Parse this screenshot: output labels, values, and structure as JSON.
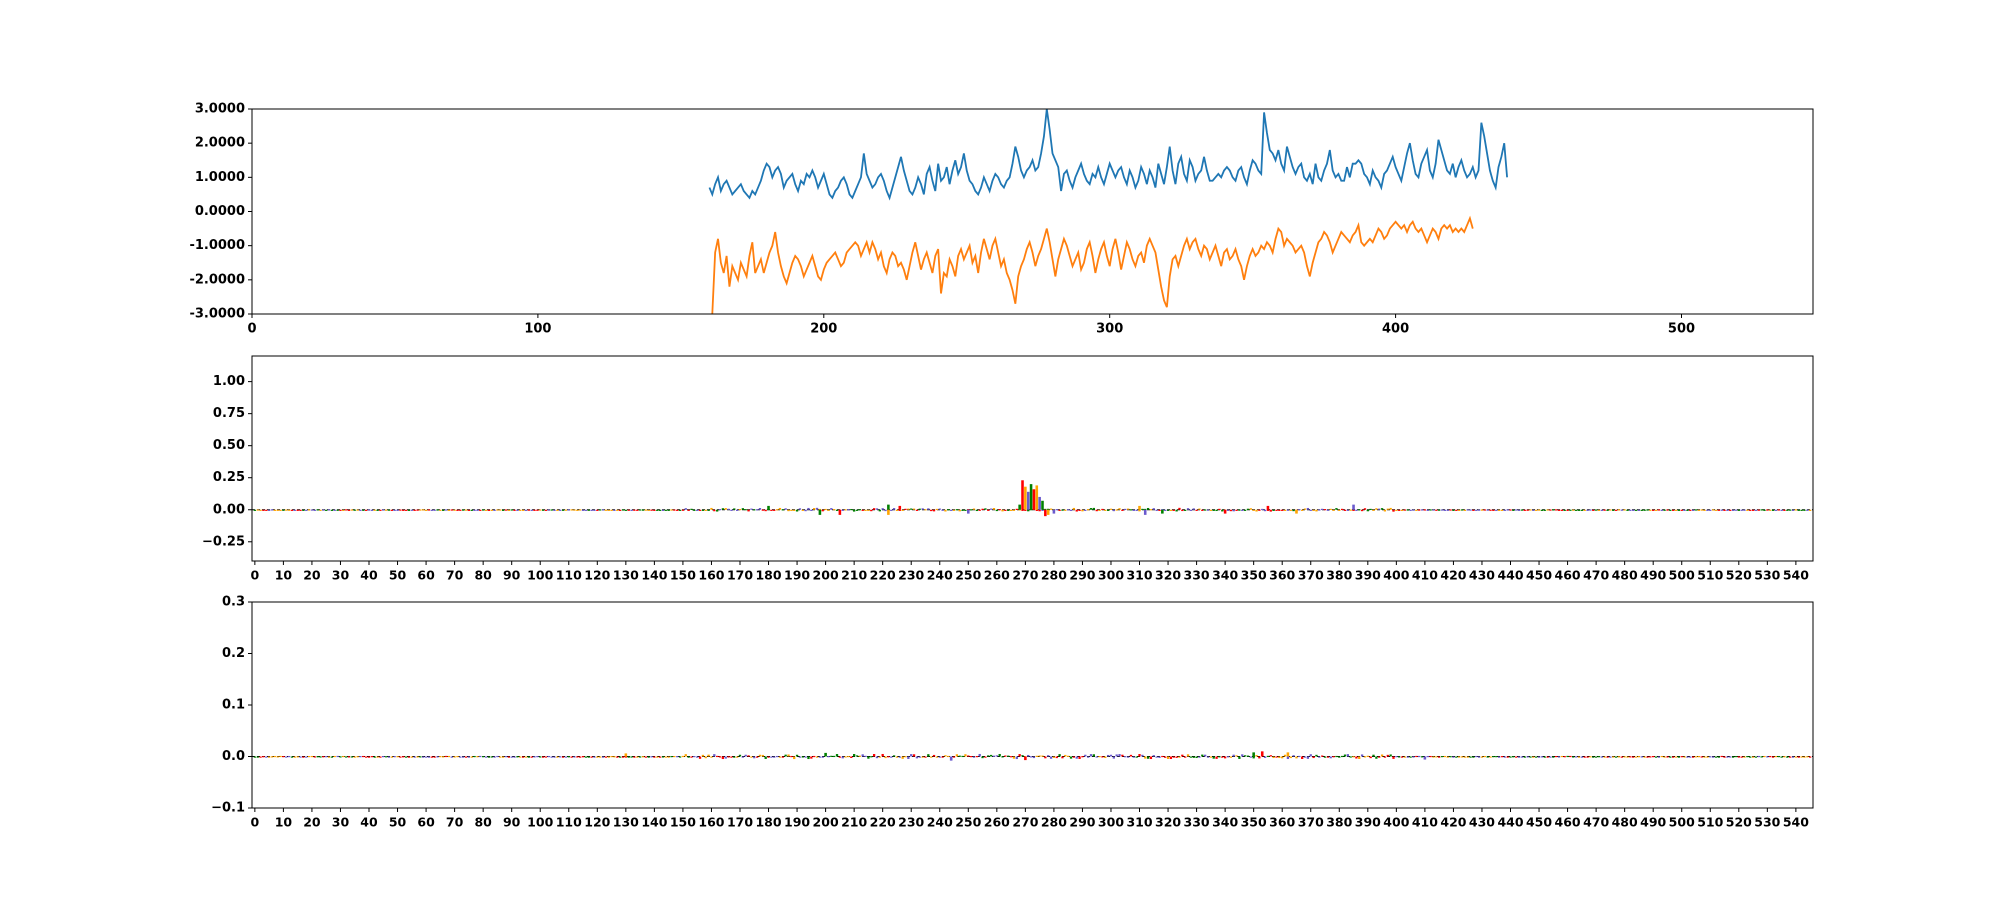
{
  "colors": {
    "blue": "#1f77b4",
    "orange": "#ff7f0e",
    "green": "#008000",
    "red": "#ff0000",
    "purple": "#6a5acd",
    "gold": "#ffa500",
    "black": "#000000"
  },
  "chart_data": [
    {
      "type": "line",
      "title": "",
      "xlabel": "",
      "ylabel": "",
      "xlim": [
        0,
        546
      ],
      "ylim": [
        -3,
        3
      ],
      "x_ticks": [
        "0",
        "100",
        "200",
        "300",
        "400",
        "500"
      ],
      "y_ticks": [
        "3.0000",
        "2.0000",
        "1.0000",
        "0.0000",
        "-1.0000",
        "-2.0000",
        "-3.0000"
      ],
      "grid": false,
      "series": [
        {
          "x_start": 160,
          "x_step": 1,
          "values": [
            0.7,
            0.5,
            0.8,
            1.0,
            0.6,
            0.8,
            0.9,
            0.7,
            0.5,
            0.6,
            0.7,
            0.8,
            0.6,
            0.5,
            0.4,
            0.6,
            0.5,
            0.7,
            0.9,
            1.2,
            1.4,
            1.3,
            1.0,
            1.2,
            1.3,
            1.1,
            0.7,
            0.9,
            1.0,
            1.1,
            0.8,
            0.6,
            0.9,
            0.8,
            1.1,
            1.0,
            1.2,
            1.0,
            0.7,
            0.9,
            1.1,
            0.8,
            0.5,
            0.4,
            0.6,
            0.7,
            0.9,
            1.0,
            0.8,
            0.5,
            0.4,
            0.6,
            0.8,
            1.0,
            1.7,
            1.1,
            0.9,
            0.7,
            0.8,
            1.0,
            1.1,
            0.9,
            0.6,
            0.4,
            0.7,
            1.0,
            1.3,
            1.6,
            1.2,
            0.9,
            0.6,
            0.5,
            0.7,
            1.0,
            0.8,
            0.5,
            1.1,
            1.3,
            0.9,
            0.6,
            1.4,
            0.9,
            1.0,
            1.3,
            0.8,
            1.2,
            1.5,
            1.1,
            1.3,
            1.7,
            1.2,
            0.9,
            0.8,
            0.6,
            0.5,
            0.7,
            1.0,
            0.8,
            0.6,
            0.9,
            1.1,
            1.0,
            0.8,
            0.7,
            0.9,
            1.0,
            1.4,
            1.9,
            1.6,
            1.2,
            1.0,
            1.2,
            1.3,
            1.5,
            1.2,
            1.3,
            1.7,
            2.2,
            3.0,
            2.4,
            1.7,
            1.5,
            1.3,
            0.6,
            1.1,
            1.2,
            0.9,
            0.7,
            1.0,
            1.2,
            1.4,
            1.1,
            0.9,
            0.8,
            1.1,
            1.0,
            1.3,
            1.0,
            0.8,
            1.1,
            1.4,
            1.2,
            1.0,
            1.2,
            1.3,
            1.0,
            0.8,
            1.2,
            1.0,
            0.7,
            0.9,
            1.3,
            1.1,
            0.8,
            1.2,
            1.0,
            0.7,
            1.4,
            1.1,
            0.8,
            1.3,
            1.9,
            1.2,
            0.8,
            1.4,
            1.6,
            1.1,
            0.9,
            1.5,
            1.3,
            0.9,
            1.1,
            1.2,
            1.6,
            1.2,
            0.9,
            0.9,
            1.0,
            1.1,
            1.0,
            1.2,
            1.3,
            1.2,
            1.0,
            0.9,
            1.2,
            1.3,
            1.0,
            0.8,
            1.2,
            1.5,
            1.4,
            1.2,
            1.1,
            2.9,
            2.3,
            1.8,
            1.7,
            1.5,
            1.8,
            1.4,
            1.2,
            1.9,
            1.6,
            1.3,
            1.1,
            1.3,
            1.4,
            1.0,
            0.9,
            1.1,
            0.8,
            1.4,
            1.0,
            0.9,
            1.2,
            1.4,
            1.8,
            1.2,
            1.0,
            1.1,
            0.9,
            0.9,
            1.3,
            1.0,
            1.4,
            1.4,
            1.5,
            1.4,
            1.1,
            1.0,
            0.8,
            1.2,
            1.0,
            0.9,
            0.7,
            1.1,
            1.2,
            1.4,
            1.6,
            1.3,
            1.1,
            0.9,
            1.3,
            1.7,
            2.0,
            1.5,
            1.1,
            1.0,
            1.4,
            1.6,
            1.8,
            1.2,
            1.0,
            1.4,
            2.1,
            1.8,
            1.5,
            1.2,
            1.1,
            1.4,
            1.0,
            1.3,
            1.5,
            1.2,
            1.0,
            1.1,
            1.3,
            1.0,
            1.2,
            2.6,
            2.2,
            1.7,
            1.2,
            0.9,
            0.7,
            1.3,
            1.6,
            2.0,
            1.0
          ],
          "color": "#1f77b4"
        },
        {
          "x_start": 161,
          "x_step": 1,
          "values": [
            -3.0,
            -1.2,
            -0.8,
            -1.5,
            -1.8,
            -1.3,
            -2.2,
            -1.6,
            -1.8,
            -2.0,
            -1.5,
            -1.7,
            -1.9,
            -1.3,
            -0.9,
            -1.8,
            -1.6,
            -1.4,
            -1.8,
            -1.5,
            -1.2,
            -1.0,
            -0.6,
            -1.2,
            -1.6,
            -1.9,
            -2.1,
            -1.8,
            -1.5,
            -1.3,
            -1.4,
            -1.6,
            -1.9,
            -1.7,
            -1.5,
            -1.3,
            -1.6,
            -1.9,
            -2.0,
            -1.7,
            -1.5,
            -1.4,
            -1.3,
            -1.2,
            -1.4,
            -1.6,
            -1.5,
            -1.2,
            -1.1,
            -1.0,
            -0.9,
            -1.0,
            -1.3,
            -1.1,
            -0.9,
            -1.2,
            -0.9,
            -1.1,
            -1.4,
            -1.2,
            -1.6,
            -1.8,
            -1.4,
            -1.2,
            -1.3,
            -1.6,
            -1.5,
            -1.7,
            -2.0,
            -1.6,
            -1.2,
            -0.9,
            -1.3,
            -1.7,
            -1.4,
            -1.2,
            -1.5,
            -1.8,
            -1.3,
            -1.1,
            -2.4,
            -1.8,
            -1.9,
            -1.4,
            -1.6,
            -1.9,
            -1.3,
            -1.1,
            -1.4,
            -1.2,
            -1.0,
            -1.5,
            -1.3,
            -1.8,
            -1.2,
            -0.8,
            -1.1,
            -1.4,
            -1.0,
            -0.8,
            -1.2,
            -1.6,
            -1.4,
            -1.8,
            -2.0,
            -2.3,
            -2.7,
            -1.9,
            -1.6,
            -1.4,
            -1.1,
            -0.9,
            -1.2,
            -1.6,
            -1.3,
            -1.1,
            -0.8,
            -0.5,
            -0.9,
            -1.4,
            -1.9,
            -1.4,
            -1.1,
            -0.8,
            -1.0,
            -1.3,
            -1.6,
            -1.4,
            -1.2,
            -1.7,
            -1.5,
            -1.1,
            -0.9,
            -1.3,
            -1.8,
            -1.4,
            -1.1,
            -0.9,
            -1.3,
            -1.6,
            -1.1,
            -0.8,
            -1.2,
            -1.7,
            -1.3,
            -0.9,
            -1.1,
            -1.4,
            -1.6,
            -1.3,
            -1.2,
            -1.5,
            -1.0,
            -0.8,
            -1.0,
            -1.2,
            -1.7,
            -2.2,
            -2.6,
            -2.8,
            -1.9,
            -1.4,
            -1.3,
            -1.6,
            -1.3,
            -1.0,
            -0.8,
            -1.1,
            -0.9,
            -0.8,
            -1.1,
            -1.3,
            -1.0,
            -1.1,
            -1.4,
            -1.2,
            -1.0,
            -1.3,
            -1.6,
            -1.2,
            -1.1,
            -1.4,
            -1.3,
            -1.1,
            -1.4,
            -1.6,
            -2.0,
            -1.6,
            -1.3,
            -1.1,
            -1.3,
            -1.2,
            -1.0,
            -1.1,
            -0.9,
            -1.0,
            -1.2,
            -0.8,
            -0.5,
            -0.6,
            -1.0,
            -0.8,
            -0.9,
            -1.0,
            -1.2,
            -1.1,
            -1.0,
            -1.2,
            -1.6,
            -1.9,
            -1.5,
            -1.2,
            -0.9,
            -0.8,
            -0.6,
            -0.7,
            -0.9,
            -1.2,
            -1.0,
            -0.8,
            -0.6,
            -0.7,
            -0.8,
            -0.9,
            -0.7,
            -0.6,
            -0.4,
            -0.9,
            -1.0,
            -0.9,
            -0.8,
            -0.9,
            -0.7,
            -0.5,
            -0.6,
            -0.8,
            -0.7,
            -0.5,
            -0.4,
            -0.3,
            -0.4,
            -0.5,
            -0.4,
            -0.6,
            -0.4,
            -0.3,
            -0.5,
            -0.6,
            -0.5,
            -0.7,
            -0.9,
            -0.7,
            -0.5,
            -0.6,
            -0.8,
            -0.5,
            -0.4,
            -0.5,
            -0.4,
            -0.6,
            -0.5,
            -0.6,
            -0.5,
            -0.6,
            -0.4,
            -0.2,
            -0.5
          ],
          "color": "#ff7f0e"
        }
      ]
    },
    {
      "type": "bar",
      "title": "",
      "xlabel": "",
      "ylabel": "",
      "xlim": [
        -1,
        546
      ],
      "ylim": [
        -0.4,
        1.2
      ],
      "y_ticks": [
        "1.00",
        "0.75",
        "0.50",
        "0.25",
        "0.00",
        "−0.25"
      ],
      "x_ticks": [
        "0",
        "10",
        "20",
        "30",
        "40",
        "50",
        "60",
        "70",
        "80",
        "90",
        "100",
        "110",
        "120",
        "130",
        "140",
        "150",
        "160",
        "170",
        "180",
        "190",
        "200",
        "210",
        "220",
        "230",
        "240",
        "250",
        "260",
        "270",
        "280",
        "290",
        "300",
        "310",
        "320",
        "330",
        "340",
        "350",
        "360",
        "370",
        "380",
        "390",
        "400",
        "410",
        "420",
        "430",
        "440",
        "450",
        "460",
        "470",
        "480",
        "490",
        "500",
        "510",
        "520",
        "530",
        "540"
      ],
      "grid": false,
      "peaks": [
        {
          "x": 268,
          "value": 0.04
        },
        {
          "x": 269,
          "value": 0.23
        },
        {
          "x": 270,
          "value": 0.18
        },
        {
          "x": 271,
          "value": 0.14
        },
        {
          "x": 272,
          "value": 0.2
        },
        {
          "x": 273,
          "value": 0.16
        },
        {
          "x": 274,
          "value": 0.19
        },
        {
          "x": 275,
          "value": 0.1
        },
        {
          "x": 276,
          "value": 0.07
        },
        {
          "x": 277,
          "value": -0.05
        },
        {
          "x": 278,
          "value": -0.04
        },
        {
          "x": 280,
          "value": -0.03
        },
        {
          "x": 222,
          "value": 0.04
        },
        {
          "x": 226,
          "value": 0.03
        },
        {
          "x": 310,
          "value": 0.03
        },
        {
          "x": 385,
          "value": 0.04
        },
        {
          "x": 198,
          "value": -0.04
        },
        {
          "x": 205,
          "value": -0.04
        },
        {
          "x": 222,
          "value": -0.04
        },
        {
          "x": 312,
          "value": -0.04
        },
        {
          "x": 318,
          "value": -0.03
        },
        {
          "x": 340,
          "value": -0.03
        },
        {
          "x": 365,
          "value": -0.03
        },
        {
          "x": 250,
          "value": -0.03
        },
        {
          "x": 180,
          "value": 0.03
        },
        {
          "x": 355,
          "value": 0.03
        }
      ]
    },
    {
      "type": "bar",
      "title": "",
      "xlabel": "",
      "ylabel": "",
      "xlim": [
        -1,
        546
      ],
      "ylim": [
        -0.1,
        0.3
      ],
      "y_ticks": [
        "0.3",
        "0.2",
        "0.1",
        "0.0",
        "−0.1"
      ],
      "x_ticks": [
        "0",
        "10",
        "20",
        "30",
        "40",
        "50",
        "60",
        "70",
        "80",
        "90",
        "100",
        "110",
        "120",
        "130",
        "140",
        "150",
        "160",
        "170",
        "180",
        "190",
        "200",
        "210",
        "220",
        "230",
        "240",
        "250",
        "260",
        "270",
        "280",
        "290",
        "300",
        "310",
        "320",
        "330",
        "340",
        "350",
        "360",
        "370",
        "380",
        "390",
        "400",
        "410",
        "420",
        "430",
        "440",
        "450",
        "460",
        "470",
        "480",
        "490",
        "500",
        "510",
        "520",
        "530",
        "540"
      ],
      "grid": false,
      "peaks": [
        {
          "x": 350,
          "value": 0.008
        },
        {
          "x": 353,
          "value": 0.01
        },
        {
          "x": 362,
          "value": 0.008
        },
        {
          "x": 244,
          "value": -0.008
        },
        {
          "x": 200,
          "value": 0.007
        },
        {
          "x": 270,
          "value": -0.007
        },
        {
          "x": 130,
          "value": 0.006
        },
        {
          "x": 410,
          "value": -0.006
        }
      ]
    }
  ]
}
